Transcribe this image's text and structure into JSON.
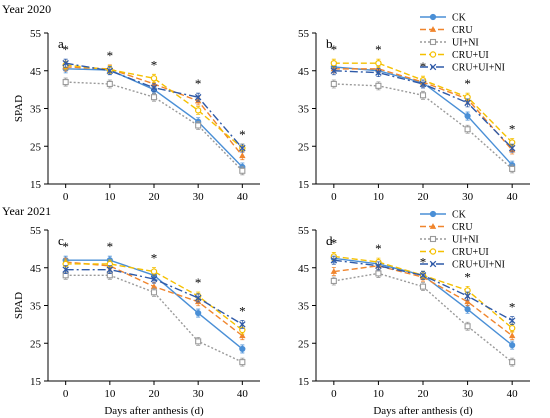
{
  "figure": {
    "year_labels": [
      "Year 2020",
      "Year 2021"
    ]
  },
  "chart_data": [
    {
      "type": "line",
      "panel_label": "a",
      "ylabel": "SPAD",
      "xlabel": "",
      "x": [
        0,
        10,
        20,
        30,
        40
      ],
      "xlim": [
        -4,
        44
      ],
      "ylim": [
        15,
        55
      ],
      "yticks": [
        15,
        25,
        35,
        45,
        55
      ],
      "significance": [
        "*",
        "*",
        "*",
        "*",
        "*"
      ],
      "legend": false,
      "series": [
        {
          "name": "CK",
          "values": [
            45.5,
            45.2,
            40.0,
            31.5,
            19.5
          ]
        },
        {
          "name": "CRU",
          "values": [
            46.0,
            45.5,
            41.5,
            37.0,
            22.5
          ]
        },
        {
          "name": "UI+NI",
          "values": [
            42.0,
            41.5,
            38.0,
            30.5,
            18.5
          ]
        },
        {
          "name": "CRU+UI",
          "values": [
            46.5,
            45.3,
            43.0,
            34.5,
            24.5
          ]
        },
        {
          "name": "CRU+UI+NI",
          "values": [
            47.0,
            45.0,
            40.5,
            38.0,
            24.5
          ]
        }
      ]
    },
    {
      "type": "line",
      "panel_label": "b",
      "ylabel": "",
      "xlabel": "",
      "x": [
        0,
        10,
        20,
        30,
        40
      ],
      "xlim": [
        -4,
        44
      ],
      "ylim": [
        15,
        55
      ],
      "yticks": [
        15,
        25,
        35,
        45,
        55
      ],
      "significance": [
        "*",
        "*",
        "*",
        "*",
        "*"
      ],
      "legend": true,
      "series": [
        {
          "name": "CK",
          "values": [
            46.0,
            45.0,
            41.8,
            33.0,
            20.0
          ]
        },
        {
          "name": "CRU",
          "values": [
            45.5,
            45.5,
            42.0,
            37.5,
            24.0
          ]
        },
        {
          "name": "UI+NI",
          "values": [
            41.5,
            41.0,
            38.5,
            29.5,
            19.0
          ]
        },
        {
          "name": "CRU+UI",
          "values": [
            47.0,
            47.0,
            42.5,
            38.0,
            26.0
          ]
        },
        {
          "name": "CRU+UI+NI",
          "values": [
            45.0,
            44.5,
            41.5,
            36.5,
            24.5
          ]
        }
      ]
    },
    {
      "type": "line",
      "panel_label": "c",
      "ylabel": "SPAD",
      "xlabel": "Days after anthesis (d)",
      "x": [
        0,
        10,
        20,
        30,
        40
      ],
      "xlim": [
        -4,
        44
      ],
      "ylim": [
        15,
        55
      ],
      "yticks": [
        15,
        25,
        35,
        45,
        55
      ],
      "significance": [
        "*",
        "*",
        "*",
        "*",
        "*"
      ],
      "legend": false,
      "series": [
        {
          "name": "CK",
          "values": [
            47.0,
            47.0,
            43.0,
            33.0,
            23.5
          ]
        },
        {
          "name": "CRU",
          "values": [
            46.5,
            45.5,
            40.0,
            36.0,
            27.0
          ]
        },
        {
          "name": "UI+NI",
          "values": [
            43.0,
            43.0,
            38.5,
            25.5,
            20.0
          ]
        },
        {
          "name": "CRU+UI",
          "values": [
            46.0,
            46.0,
            44.0,
            37.5,
            28.5
          ]
        },
        {
          "name": "CRU+UI+NI",
          "values": [
            44.5,
            44.5,
            42.0,
            37.0,
            30.0
          ]
        }
      ]
    },
    {
      "type": "line",
      "panel_label": "d",
      "ylabel": "",
      "xlabel": "Days after anthesis (d)",
      "x": [
        0,
        10,
        20,
        30,
        40
      ],
      "xlim": [
        -4,
        44
      ],
      "ylim": [
        15,
        55
      ],
      "yticks": [
        15,
        25,
        35,
        45,
        55
      ],
      "significance": [
        "*",
        "*",
        "*",
        "*",
        "*"
      ],
      "legend": true,
      "series": [
        {
          "name": "CK",
          "values": [
            47.5,
            46.0,
            43.0,
            34.0,
            24.5
          ]
        },
        {
          "name": "CRU",
          "values": [
            44.0,
            45.5,
            42.5,
            36.0,
            27.0
          ]
        },
        {
          "name": "UI+NI",
          "values": [
            41.5,
            43.5,
            40.0,
            29.5,
            20.0
          ]
        },
        {
          "name": "CRU+UI",
          "values": [
            48.0,
            46.5,
            43.0,
            39.0,
            29.0
          ]
        },
        {
          "name": "CRU+UI+NI",
          "values": [
            47.0,
            45.5,
            43.0,
            37.5,
            31.0
          ]
        }
      ]
    }
  ],
  "styles": {
    "series_colors": [
      "#4a8fd6",
      "#f0852d",
      "#9a9a9a",
      "#f5c000",
      "#2f5aa8"
    ],
    "series_dash": [
      "",
      "6,3",
      "2,2",
      "6,3",
      "8,3,2,3"
    ],
    "series_markers": [
      "circle",
      "triangle",
      "square",
      "open-circle",
      "x"
    ]
  }
}
